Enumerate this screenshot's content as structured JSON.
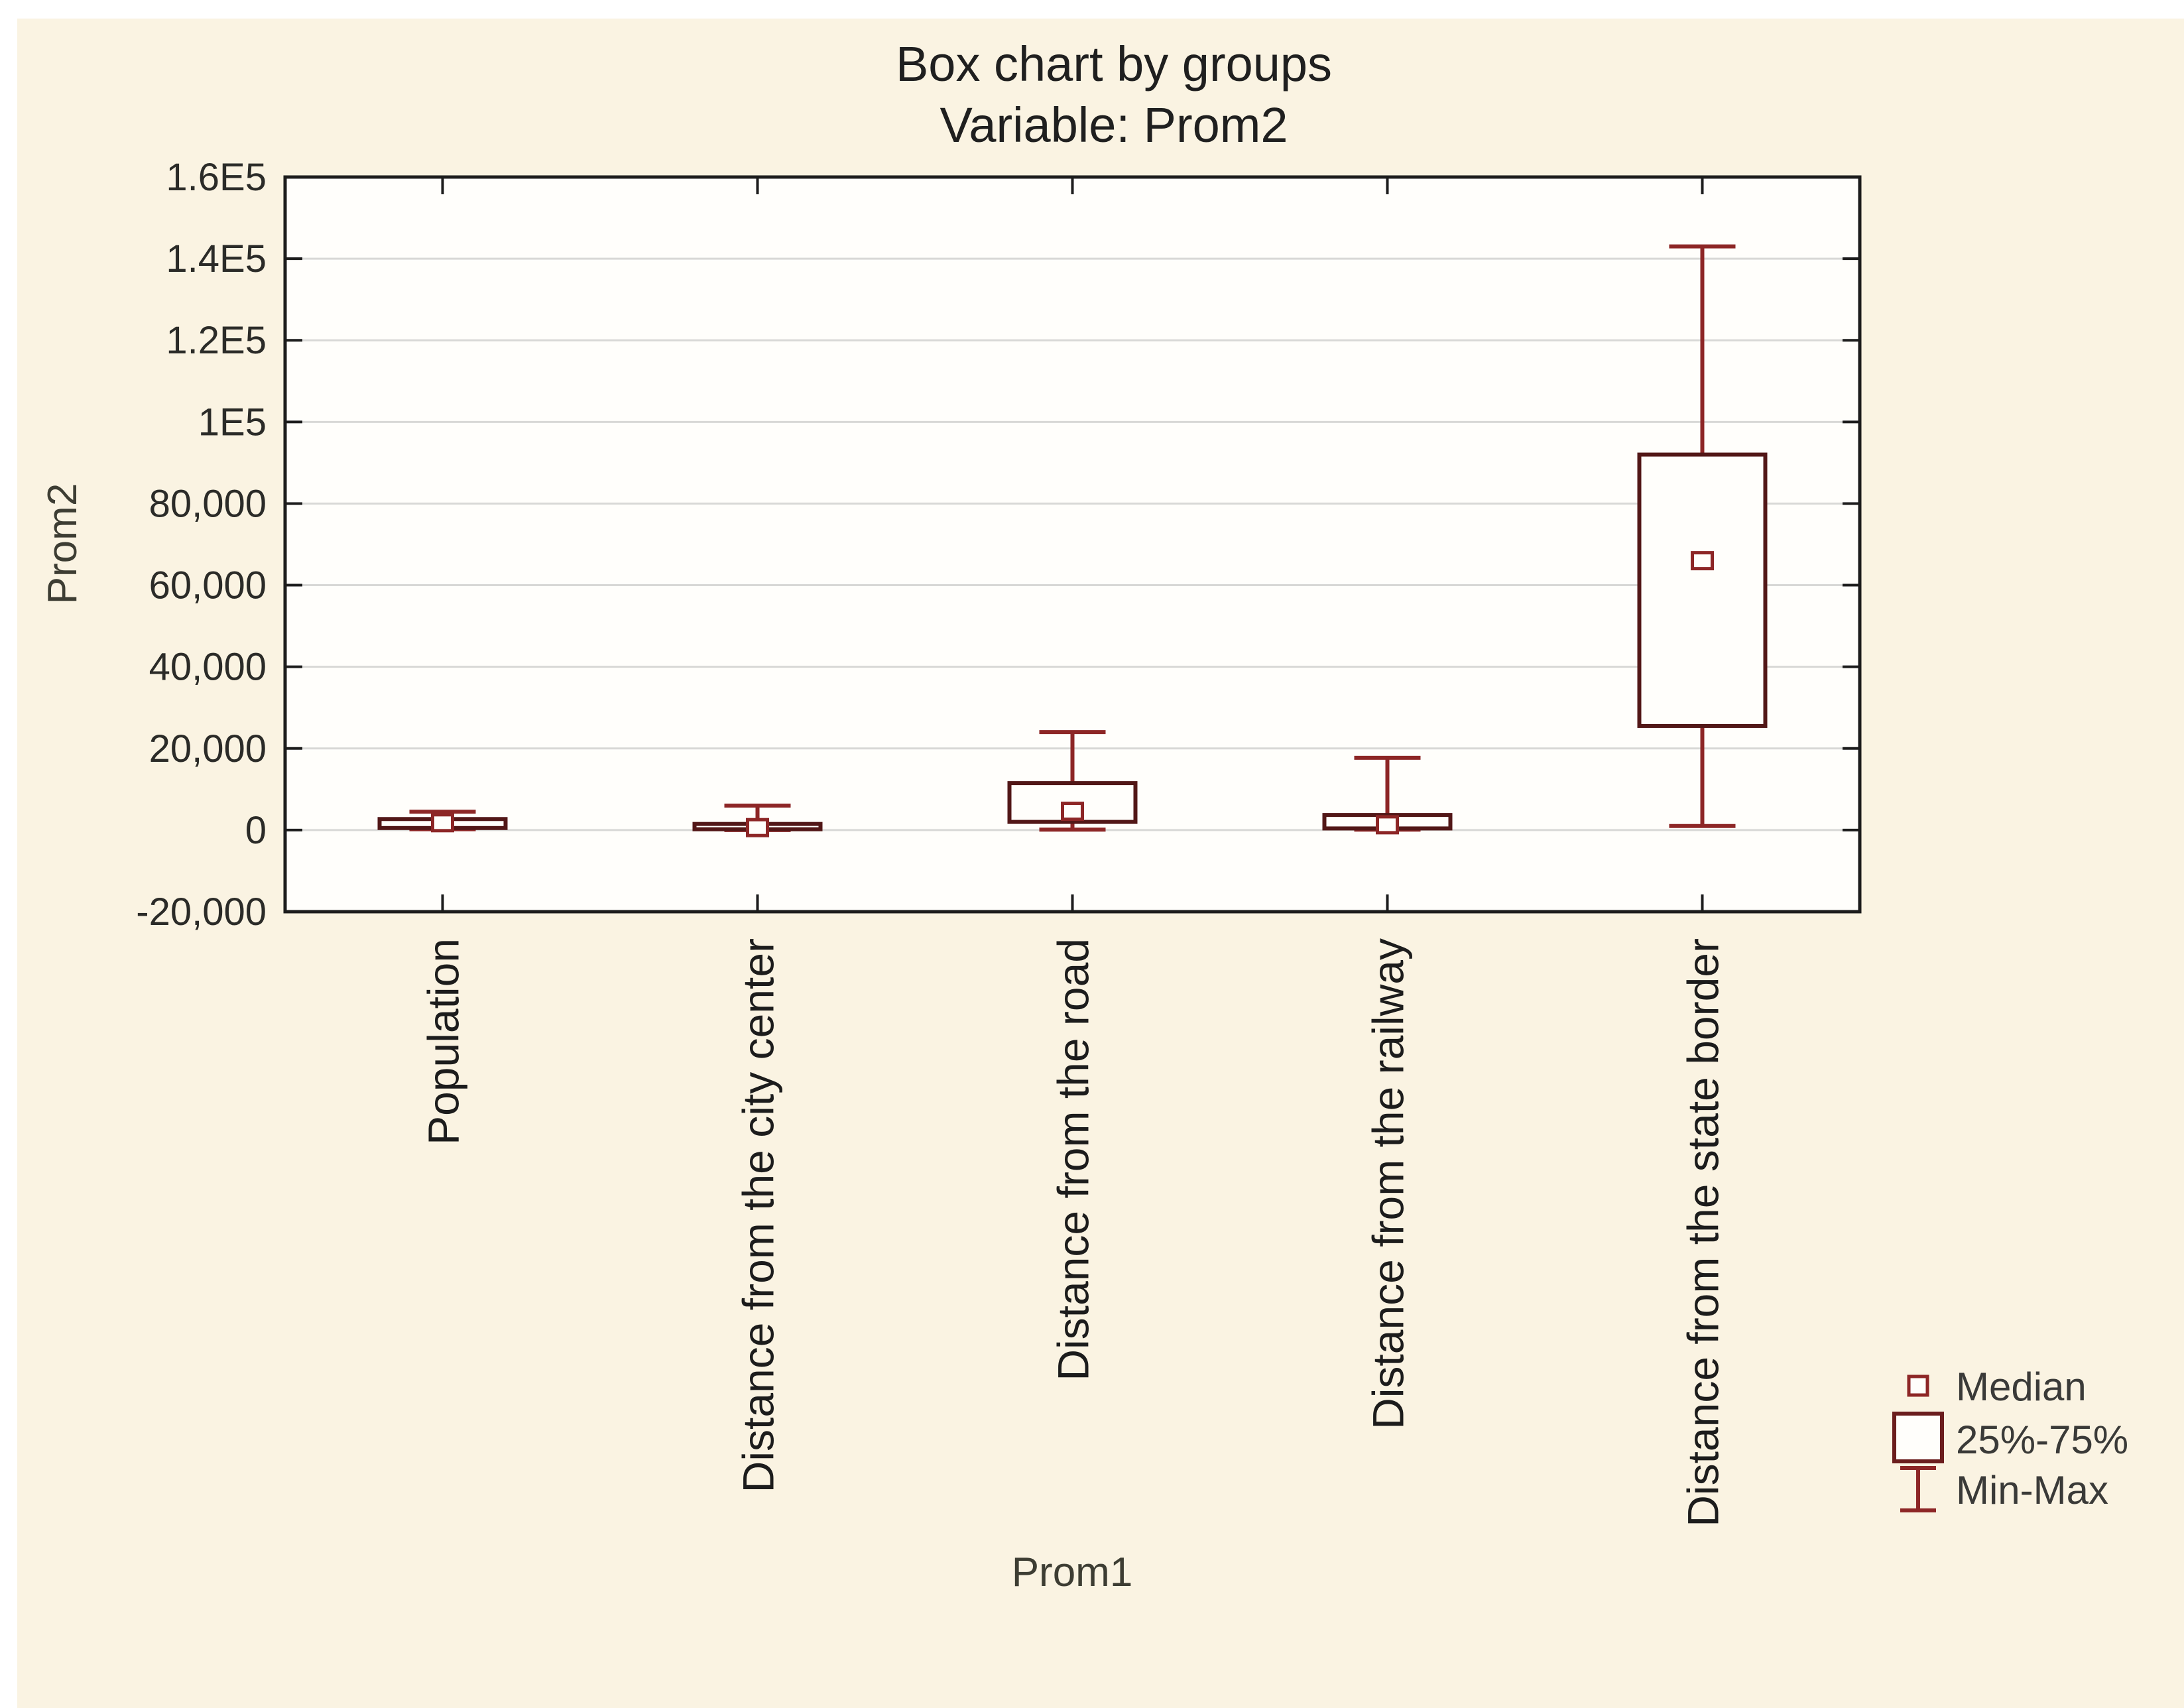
{
  "page": {
    "canvas_color": "#faf3e2",
    "margin_color": "#ffffff"
  },
  "chart_data": {
    "type": "box",
    "title": "Box chart by groups",
    "subtitle": "Variable: Prom2",
    "xlabel": "Prom1",
    "ylabel": "Prom2",
    "ylim": [
      -20000,
      160000
    ],
    "grid": true,
    "legend_position": "bottom-right",
    "y_ticks": [
      {
        "value": -20000,
        "label": "-20,000"
      },
      {
        "value": 0,
        "label": "0"
      },
      {
        "value": 20000,
        "label": "20,000"
      },
      {
        "value": 40000,
        "label": "40,000"
      },
      {
        "value": 60000,
        "label": "60,000"
      },
      {
        "value": 80000,
        "label": "80,000"
      },
      {
        "value": 100000,
        "label": "1E5"
      },
      {
        "value": 120000,
        "label": "1.2E5"
      },
      {
        "value": 140000,
        "label": "1.4E5"
      },
      {
        "value": 160000,
        "label": "1.6E5"
      }
    ],
    "categories": [
      "Population",
      "Distance from the city center",
      "Distance from the road",
      "Distance from the railway",
      "Distance from the state border"
    ],
    "boxes": [
      {
        "category": "Population",
        "min": 200,
        "q1": 500,
        "median": 1800,
        "q3": 2700,
        "max": 4500
      },
      {
        "category": "Distance from the city center",
        "min": 0,
        "q1": 200,
        "median": 600,
        "q3": 1500,
        "max": 6000
      },
      {
        "category": "Distance from the road",
        "min": 100,
        "q1": 2000,
        "median": 4600,
        "q3": 11500,
        "max": 24000
      },
      {
        "category": "Distance from the railway",
        "min": 100,
        "q1": 400,
        "median": 1300,
        "q3": 3700,
        "max": 17700
      },
      {
        "category": "Distance from the state border",
        "min": 1000,
        "q1": 25500,
        "median": 66000,
        "q3": 92000,
        "max": 143000
      }
    ],
    "legend": [
      {
        "marker": "median-square",
        "label": "Median"
      },
      {
        "marker": "box",
        "label": "25%-75%"
      },
      {
        "marker": "whisker",
        "label": "Min-Max"
      }
    ],
    "colors": {
      "box_border": "#521717",
      "whisker": "#8d2626",
      "median_marker": "#8d2626",
      "grid": "#d8d8d6",
      "frame": "#1c1c1c",
      "plot_bg": "#fffefb",
      "canvas_bg": "#faf3e2"
    }
  }
}
